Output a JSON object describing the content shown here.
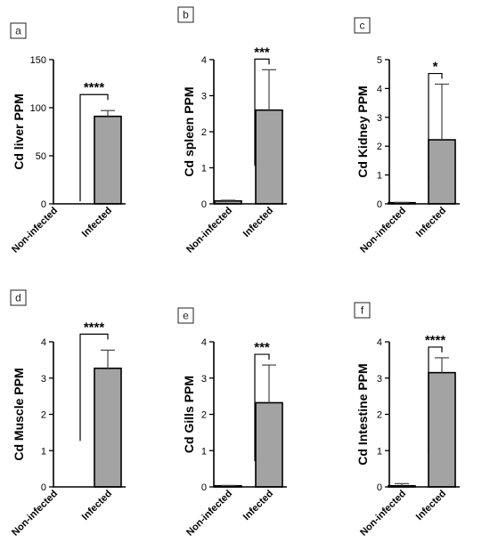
{
  "colors": {
    "infected_bar": "#a3a3a3",
    "noninfected_bar": "#a3a3a3",
    "axis": "#000000"
  },
  "chart_data": [
    {
      "type": "bar",
      "panel": "a",
      "ylabel": "Cd liver PPM",
      "categories": [
        "Non-infected",
        "Infected"
      ],
      "values": [
        0,
        91
      ],
      "errors": [
        0,
        6
      ],
      "ylim": [
        0,
        150
      ],
      "yticks": [
        0,
        50,
        100,
        150
      ],
      "significance": "****"
    },
    {
      "type": "bar",
      "panel": "b",
      "ylabel": "Cd spleen PPM",
      "categories": [
        "Non-infected",
        "Infected"
      ],
      "values": [
        0.08,
        2.6
      ],
      "errors": [
        0.02,
        1.12
      ],
      "ylim": [
        0,
        4
      ],
      "yticks": [
        0,
        1,
        2,
        3,
        4
      ],
      "significance": "***"
    },
    {
      "type": "bar",
      "panel": "c",
      "ylabel": "Cd Kidney PPM",
      "categories": [
        "Non-infected",
        "Infected"
      ],
      "values": [
        0.04,
        2.22
      ],
      "errors": [
        0.01,
        1.93
      ],
      "ylim": [
        0,
        5
      ],
      "yticks": [
        0,
        1,
        2,
        3,
        4,
        5
      ],
      "significance": "*"
    },
    {
      "type": "bar",
      "panel": "d",
      "ylabel": "Cd Muscle PPM",
      "categories": [
        "Non-infected",
        "Infected"
      ],
      "values": [
        0,
        3.27
      ],
      "errors": [
        0,
        0.5
      ],
      "ylim": [
        0,
        4
      ],
      "yticks": [
        0,
        1,
        2,
        3,
        4
      ],
      "significance": "****"
    },
    {
      "type": "bar",
      "panel": "e",
      "ylabel": "Cd Gills PPM",
      "categories": [
        "Non-infected",
        "Infected"
      ],
      "values": [
        0.03,
        2.32
      ],
      "errors": [
        0.01,
        1.04
      ],
      "ylim": [
        0,
        4
      ],
      "yticks": [
        0,
        1,
        2,
        3,
        4
      ],
      "significance": "***"
    },
    {
      "type": "bar",
      "panel": "f",
      "ylabel": "Cd Intestine PPM",
      "categories": [
        "Non-infected",
        "Infected"
      ],
      "values": [
        0.03,
        3.15
      ],
      "errors": [
        0.06,
        0.41
      ],
      "ylim": [
        0,
        4
      ],
      "yticks": [
        0,
        1,
        2,
        3,
        4
      ],
      "significance": "****"
    }
  ]
}
